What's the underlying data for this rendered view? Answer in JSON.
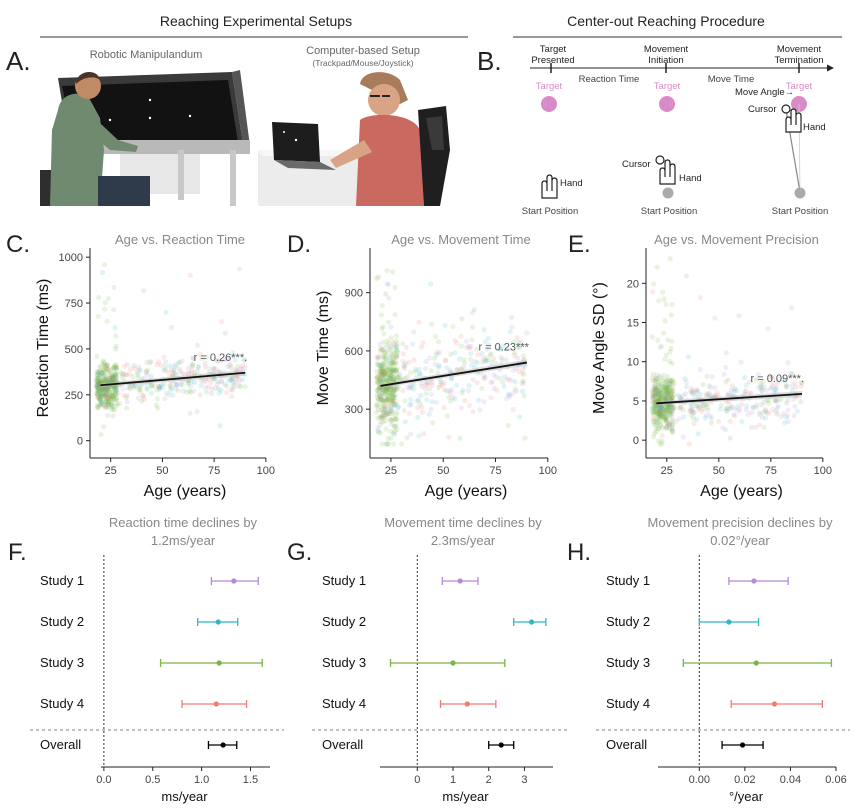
{
  "top": {
    "setups_title": "Reaching Experimental Setups",
    "procedure_title": "Center-out Reaching Procedure"
  },
  "panelA": {
    "letter": "A.",
    "robot_label": "Robotic Manipulandum",
    "computer_label": "Computer-based Setup",
    "computer_sub": "(Trackpad/Mouse/Joystick)"
  },
  "panelB": {
    "letter": "B.",
    "events": [
      "Target Presented",
      "Movement Initiation",
      "Movement Termination"
    ],
    "intervals": [
      "Reaction Time",
      "Move Time"
    ],
    "target": "Target",
    "start": "Start Position",
    "hand": "Hand",
    "cursor": "Cursor",
    "move_angle": "Move Angle"
  },
  "colors": {
    "study1": "#b58ad6",
    "study2": "#2fb8c4",
    "study3": "#77b545",
    "study4": "#ef7b74",
    "overall": "#000000",
    "target": "#d98bc8"
  },
  "chart_data": [
    {
      "type": "scatter",
      "panel": "C.",
      "title": "Age vs. Reaction Time",
      "xlabel": "Age (years)",
      "ylabel": "Reaction Time (ms)",
      "xlim": [
        15,
        102
      ],
      "ylim": [
        -40,
        1050
      ],
      "xticks": [
        25,
        50,
        75,
        100
      ],
      "yticks": [
        0,
        250,
        500,
        750,
        1000
      ],
      "fit": {
        "x": [
          20,
          90
        ],
        "y": [
          302,
          370
        ]
      },
      "annotation": "r = 0.26***.",
      "cloud": {
        "center": 300,
        "spread": 60
      }
    },
    {
      "type": "scatter",
      "panel": "D.",
      "title": "Age vs. Movement Time",
      "xlabel": "Age (years)",
      "ylabel": "Move Time (ms)",
      "xlim": [
        15,
        102
      ],
      "ylim": [
        100,
        1130
      ],
      "xticks": [
        25,
        50,
        75,
        100
      ],
      "yticks": [
        300,
        600,
        900
      ],
      "fit": {
        "x": [
          20,
          90
        ],
        "y": [
          420,
          540
        ]
      },
      "annotation": "r = 0.23***",
      "cloud": {
        "center": 420,
        "spread": 120
      }
    },
    {
      "type": "scatter",
      "panel": "E.",
      "title": "Age vs. Movement Precision",
      "xlabel": "Age (years)",
      "ylabel": "Move Angle SD (°)",
      "xlim": [
        15,
        102
      ],
      "ylim": [
        -1,
        24.5
      ],
      "xticks": [
        25,
        50,
        75,
        100
      ],
      "yticks": [
        0,
        5,
        10,
        15,
        20
      ],
      "fit": {
        "x": [
          20,
          90
        ],
        "y": [
          4.7,
          5.9
        ]
      },
      "annotation": "r = 0.09***.",
      "cloud": {
        "center": 4.6,
        "spread": 1.8
      }
    },
    {
      "type": "forest",
      "panel": "F.",
      "title_lines": [
        "Reaction time declines by",
        "1.2ms/year"
      ],
      "xlabel": "ms/year",
      "xlim": [
        -0.05,
        1.7
      ],
      "xticks": [
        0.0,
        0.5,
        1.0,
        1.5
      ],
      "xtick_labels": [
        "0.0",
        "0.5",
        "1.0",
        "1.5"
      ],
      "rows": [
        {
          "label": "Study 1",
          "est": 1.33,
          "lo": 1.1,
          "hi": 1.58
        },
        {
          "label": "Study 2",
          "est": 1.17,
          "lo": 0.96,
          "hi": 1.37
        },
        {
          "label": "Study 3",
          "est": 1.18,
          "lo": 0.58,
          "hi": 1.62
        },
        {
          "label": "Study 4",
          "est": 1.15,
          "lo": 0.8,
          "hi": 1.46
        },
        {
          "label": "Overall",
          "est": 1.22,
          "lo": 1.07,
          "hi": 1.36
        }
      ]
    },
    {
      "type": "forest",
      "panel": "G.",
      "title_lines": [
        "Movement time declines by",
        "2.3ms/year"
      ],
      "xlabel": "ms/year",
      "xlim": [
        -1.1,
        3.8
      ],
      "xticks": [
        0,
        1,
        2,
        3
      ],
      "xtick_labels": [
        "0",
        "1",
        "2",
        "3"
      ],
      "rows": [
        {
          "label": "Study 1",
          "est": 1.2,
          "lo": 0.7,
          "hi": 1.7
        },
        {
          "label": "Study 2",
          "est": 3.2,
          "lo": 2.7,
          "hi": 3.6
        },
        {
          "label": "Study 3",
          "est": 1.0,
          "lo": -0.75,
          "hi": 2.45
        },
        {
          "label": "Study 4",
          "est": 1.4,
          "lo": 0.65,
          "hi": 2.2
        },
        {
          "label": "Overall",
          "est": 2.35,
          "lo": 2.0,
          "hi": 2.7
        }
      ]
    },
    {
      "type": "forest",
      "panel": "H.",
      "title_lines": [
        "Movement precision declines by",
        "0.02°/year"
      ],
      "xlabel": "°/year",
      "xlim": [
        -0.019,
        0.06
      ],
      "xticks": [
        0.0,
        0.02,
        0.04,
        0.06
      ],
      "xtick_labels": [
        "0.00",
        "0.02",
        "0.04",
        "0.06"
      ],
      "rows": [
        {
          "label": "Study 1",
          "est": 0.024,
          "lo": 0.013,
          "hi": 0.039
        },
        {
          "label": "Study 2",
          "est": 0.013,
          "lo": 0.0,
          "hi": 0.026
        },
        {
          "label": "Study 3",
          "est": 0.025,
          "lo": -0.007,
          "hi": 0.058
        },
        {
          "label": "Study 4",
          "est": 0.033,
          "lo": 0.014,
          "hi": 0.054
        },
        {
          "label": "Overall",
          "est": 0.019,
          "lo": 0.01,
          "hi": 0.028
        }
      ]
    }
  ]
}
